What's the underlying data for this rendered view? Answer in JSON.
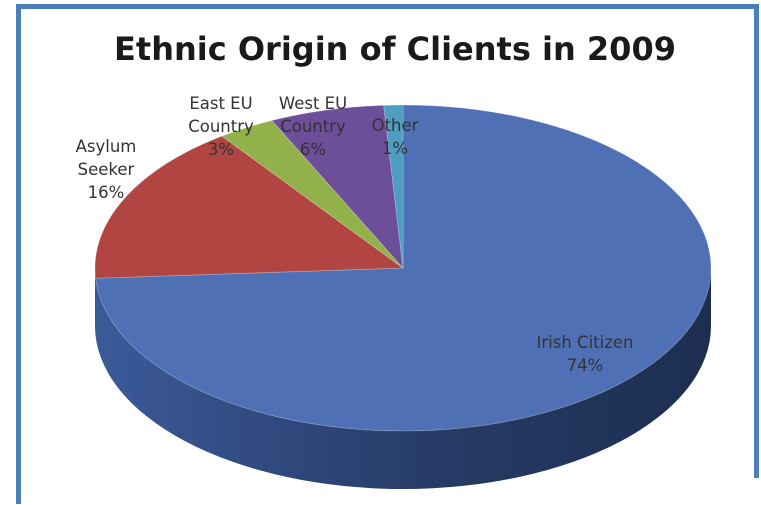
{
  "chart_data": {
    "type": "pie",
    "title": "Ethnic Origin of Clients in 2009",
    "slices": [
      {
        "label": "Irish Citizen",
        "label_lines": [
          "Irish Citizen"
        ],
        "pct_text": "74%",
        "value": 74,
        "color": "#4f70b4"
      },
      {
        "label": "Asylum Seeker",
        "label_lines": [
          "Asylum",
          "Seeker"
        ],
        "pct_text": "16%",
        "value": 16,
        "color": "#b04542"
      },
      {
        "label": "East EU Country",
        "label_lines": [
          "East EU",
          "Country"
        ],
        "pct_text": "3%",
        "value": 3,
        "color": "#93b14a"
      },
      {
        "label": "West EU Country",
        "label_lines": [
          "West EU",
          "Country"
        ],
        "pct_text": "6%",
        "value": 6,
        "color": "#6c4f98"
      },
      {
        "label": "Other",
        "label_lines": [
          "Other"
        ],
        "pct_text": "1%",
        "value": 1,
        "color": "#4d9ec0"
      }
    ],
    "legend": "none",
    "style": "3d-pie"
  }
}
